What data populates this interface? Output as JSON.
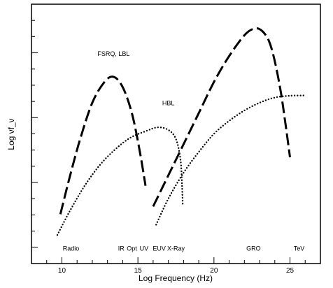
{
  "chart_data": {
    "type": "line",
    "title": "",
    "xlabel": "Log Frequency (Hz)",
    "ylabel": "Log νf_ν",
    "xlim": [
      8,
      27
    ],
    "ylim": [
      0,
      100
    ],
    "xticks": [
      10,
      15,
      20,
      25
    ],
    "yticks_unlabeled": true,
    "grid": false,
    "series": [
      {
        "name": "FSRQ, LBL",
        "style": "long-dash",
        "points": [
          [
            9.9,
            19
          ],
          [
            10.5,
            33
          ],
          [
            11.2,
            48
          ],
          [
            12.0,
            62
          ],
          [
            12.8,
            70
          ],
          [
            13.4,
            72
          ],
          [
            14.0,
            68
          ],
          [
            14.6,
            58
          ],
          [
            15.1,
            44
          ],
          [
            15.5,
            30
          ]
        ]
      },
      {
        "name": "FSRQ, LBL",
        "style": "long-dash",
        "points": [
          [
            16.0,
            22
          ],
          [
            17.0,
            34
          ],
          [
            18.0,
            46
          ],
          [
            19.0,
            58
          ],
          [
            20.0,
            70
          ],
          [
            21.0,
            80
          ],
          [
            22.0,
            88
          ],
          [
            22.6,
            90.5
          ],
          [
            23.1,
            90
          ],
          [
            23.6,
            86
          ],
          [
            24.0,
            78
          ],
          [
            24.4,
            66
          ],
          [
            24.7,
            54
          ],
          [
            25.0,
            41
          ]
        ]
      },
      {
        "name": "HBL",
        "style": "dotted",
        "points": [
          [
            9.7,
            11
          ],
          [
            10.5,
            20
          ],
          [
            11.5,
            30
          ],
          [
            12.5,
            38
          ],
          [
            13.5,
            44
          ],
          [
            14.5,
            48.5
          ],
          [
            15.5,
            51
          ],
          [
            16.3,
            52.5
          ],
          [
            17.0,
            51.5
          ],
          [
            17.5,
            48
          ],
          [
            17.8,
            40
          ],
          [
            17.9,
            30
          ],
          [
            17.95,
            22
          ]
        ]
      },
      {
        "name": "HBL",
        "style": "dotted",
        "points": [
          [
            16.2,
            15
          ],
          [
            17.0,
            25
          ],
          [
            18.0,
            35
          ],
          [
            19.0,
            43
          ],
          [
            20.0,
            50
          ],
          [
            21.0,
            55
          ],
          [
            22.0,
            59
          ],
          [
            23.0,
            62
          ],
          [
            24.0,
            64
          ],
          [
            25.0,
            64.7
          ],
          [
            26.0,
            64.8
          ]
        ]
      }
    ],
    "annotations": [
      {
        "text": "FSRQ, LBL",
        "x": 13.4,
        "y": 80
      },
      {
        "text": "HBL",
        "x": 17.0,
        "y": 61
      },
      {
        "text": "Radio",
        "x": 10.6,
        "y": 5
      },
      {
        "text": "IR",
        "x": 13.9,
        "y": 5
      },
      {
        "text": "Opt",
        "x": 14.6,
        "y": 5
      },
      {
        "text": "UV",
        "x": 15.4,
        "y": 5
      },
      {
        "text": "EUV",
        "x": 16.4,
        "y": 5
      },
      {
        "text": "X-Ray",
        "x": 17.5,
        "y": 5
      },
      {
        "text": "GRO",
        "x": 22.6,
        "y": 5
      },
      {
        "text": "TeV",
        "x": 25.6,
        "y": 5
      }
    ]
  }
}
